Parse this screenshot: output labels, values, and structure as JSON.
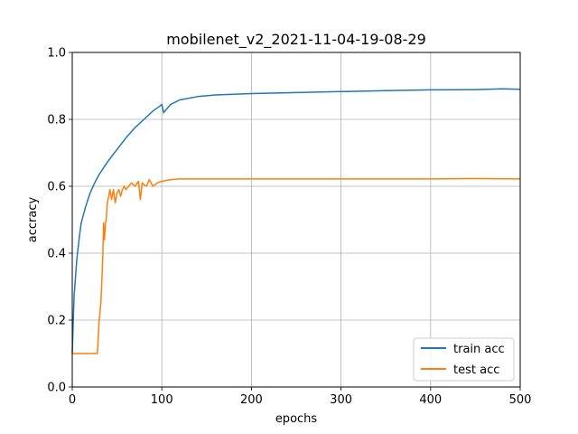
{
  "chart_data": {
    "type": "line",
    "title": "mobilenet_v2_2021-11-04-19-08-29",
    "xlabel": "epochs",
    "ylabel": "accracy",
    "xlim": [
      0,
      500
    ],
    "ylim": [
      0.0,
      1.0
    ],
    "x_ticks": [
      "0",
      "100",
      "200",
      "300",
      "400",
      "500"
    ],
    "y_ticks": [
      "0.0",
      "0.2",
      "0.4",
      "0.6",
      "0.8",
      "1.0"
    ],
    "grid": true,
    "legend_position": "lower-right",
    "series": [
      {
        "name": "train acc",
        "color": "#1f77b4",
        "x": [
          0,
          2,
          5,
          8,
          10,
          15,
          20,
          25,
          30,
          35,
          40,
          50,
          60,
          70,
          80,
          90,
          98,
          100,
          102,
          105,
          110,
          120,
          140,
          160,
          180,
          200,
          250,
          300,
          350,
          400,
          450,
          480,
          500
        ],
        "y": [
          0.1,
          0.27,
          0.38,
          0.45,
          0.49,
          0.54,
          0.58,
          0.61,
          0.635,
          0.655,
          0.675,
          0.71,
          0.745,
          0.775,
          0.8,
          0.825,
          0.84,
          0.845,
          0.82,
          0.83,
          0.845,
          0.858,
          0.868,
          0.873,
          0.875,
          0.877,
          0.88,
          0.883,
          0.886,
          0.888,
          0.889,
          0.891,
          0.89
        ]
      },
      {
        "name": "test acc",
        "color": "#ff7f0e",
        "x": [
          0,
          5,
          10,
          15,
          20,
          25,
          28,
          30,
          32,
          34,
          35,
          36,
          37,
          38,
          39,
          40,
          42,
          44,
          46,
          48,
          50,
          52,
          54,
          56,
          58,
          60,
          63,
          66,
          70,
          74,
          76,
          78,
          80,
          83,
          86,
          90,
          95,
          100,
          110,
          120,
          150,
          200,
          250,
          300,
          350,
          400,
          450,
          500
        ],
        "y": [
          0.1,
          0.1,
          0.1,
          0.1,
          0.1,
          0.1,
          0.1,
          0.2,
          0.25,
          0.38,
          0.49,
          0.44,
          0.49,
          0.5,
          0.55,
          0.56,
          0.59,
          0.56,
          0.59,
          0.55,
          0.58,
          0.59,
          0.57,
          0.59,
          0.6,
          0.59,
          0.6,
          0.61,
          0.6,
          0.615,
          0.56,
          0.61,
          0.605,
          0.6,
          0.62,
          0.6,
          0.61,
          0.615,
          0.62,
          0.622,
          0.622,
          0.622,
          0.622,
          0.622,
          0.622,
          0.622,
          0.623,
          0.622
        ]
      }
    ]
  }
}
